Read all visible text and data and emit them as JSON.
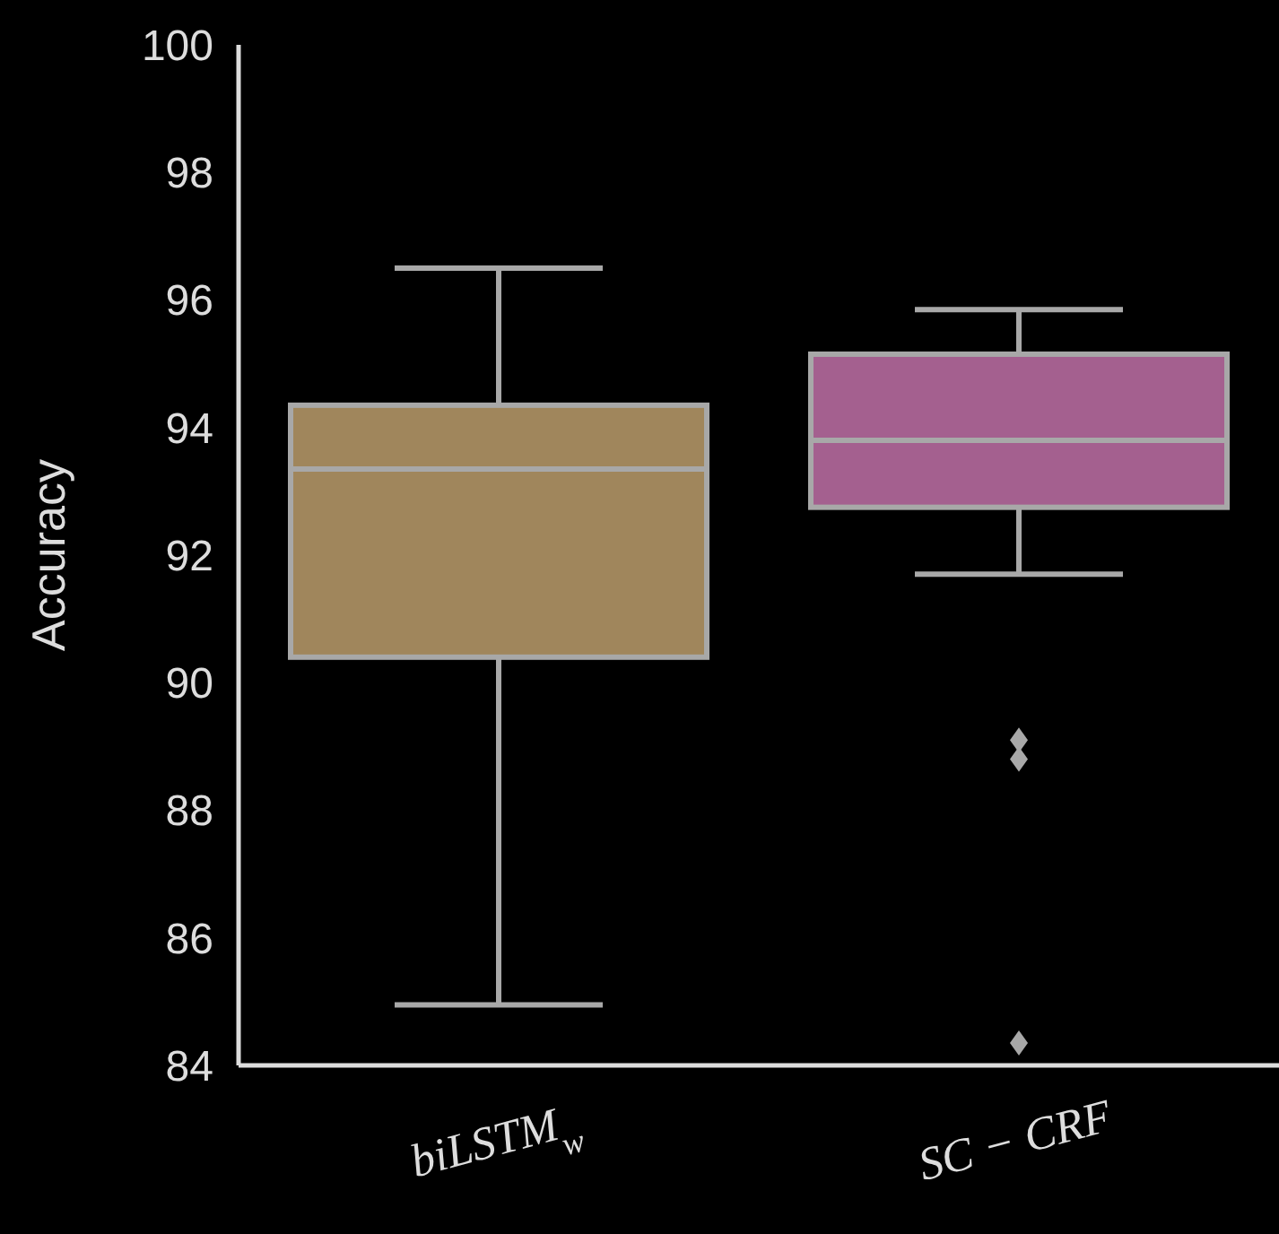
{
  "chart_data": {
    "type": "box",
    "ylabel": "Accuracy",
    "categories": [
      "biLSTM$_{w}$",
      "SC − CRF"
    ],
    "ylim": [
      84,
      100
    ],
    "yticks": [
      84,
      86,
      88,
      90,
      92,
      94,
      96,
      98,
      100
    ],
    "grid": false,
    "colors": [
      "#a0865c",
      "#a4608f"
    ],
    "boxes": [
      {
        "low": 84.95,
        "q1": 90.4,
        "median": 93.35,
        "q3": 94.35,
        "high": 96.5
      },
      {
        "low": 91.7,
        "q1": 92.75,
        "median": 93.8,
        "q3": 95.15,
        "high": 95.85,
        "outliers": [
          89.1,
          88.8,
          84.35
        ]
      }
    ]
  }
}
